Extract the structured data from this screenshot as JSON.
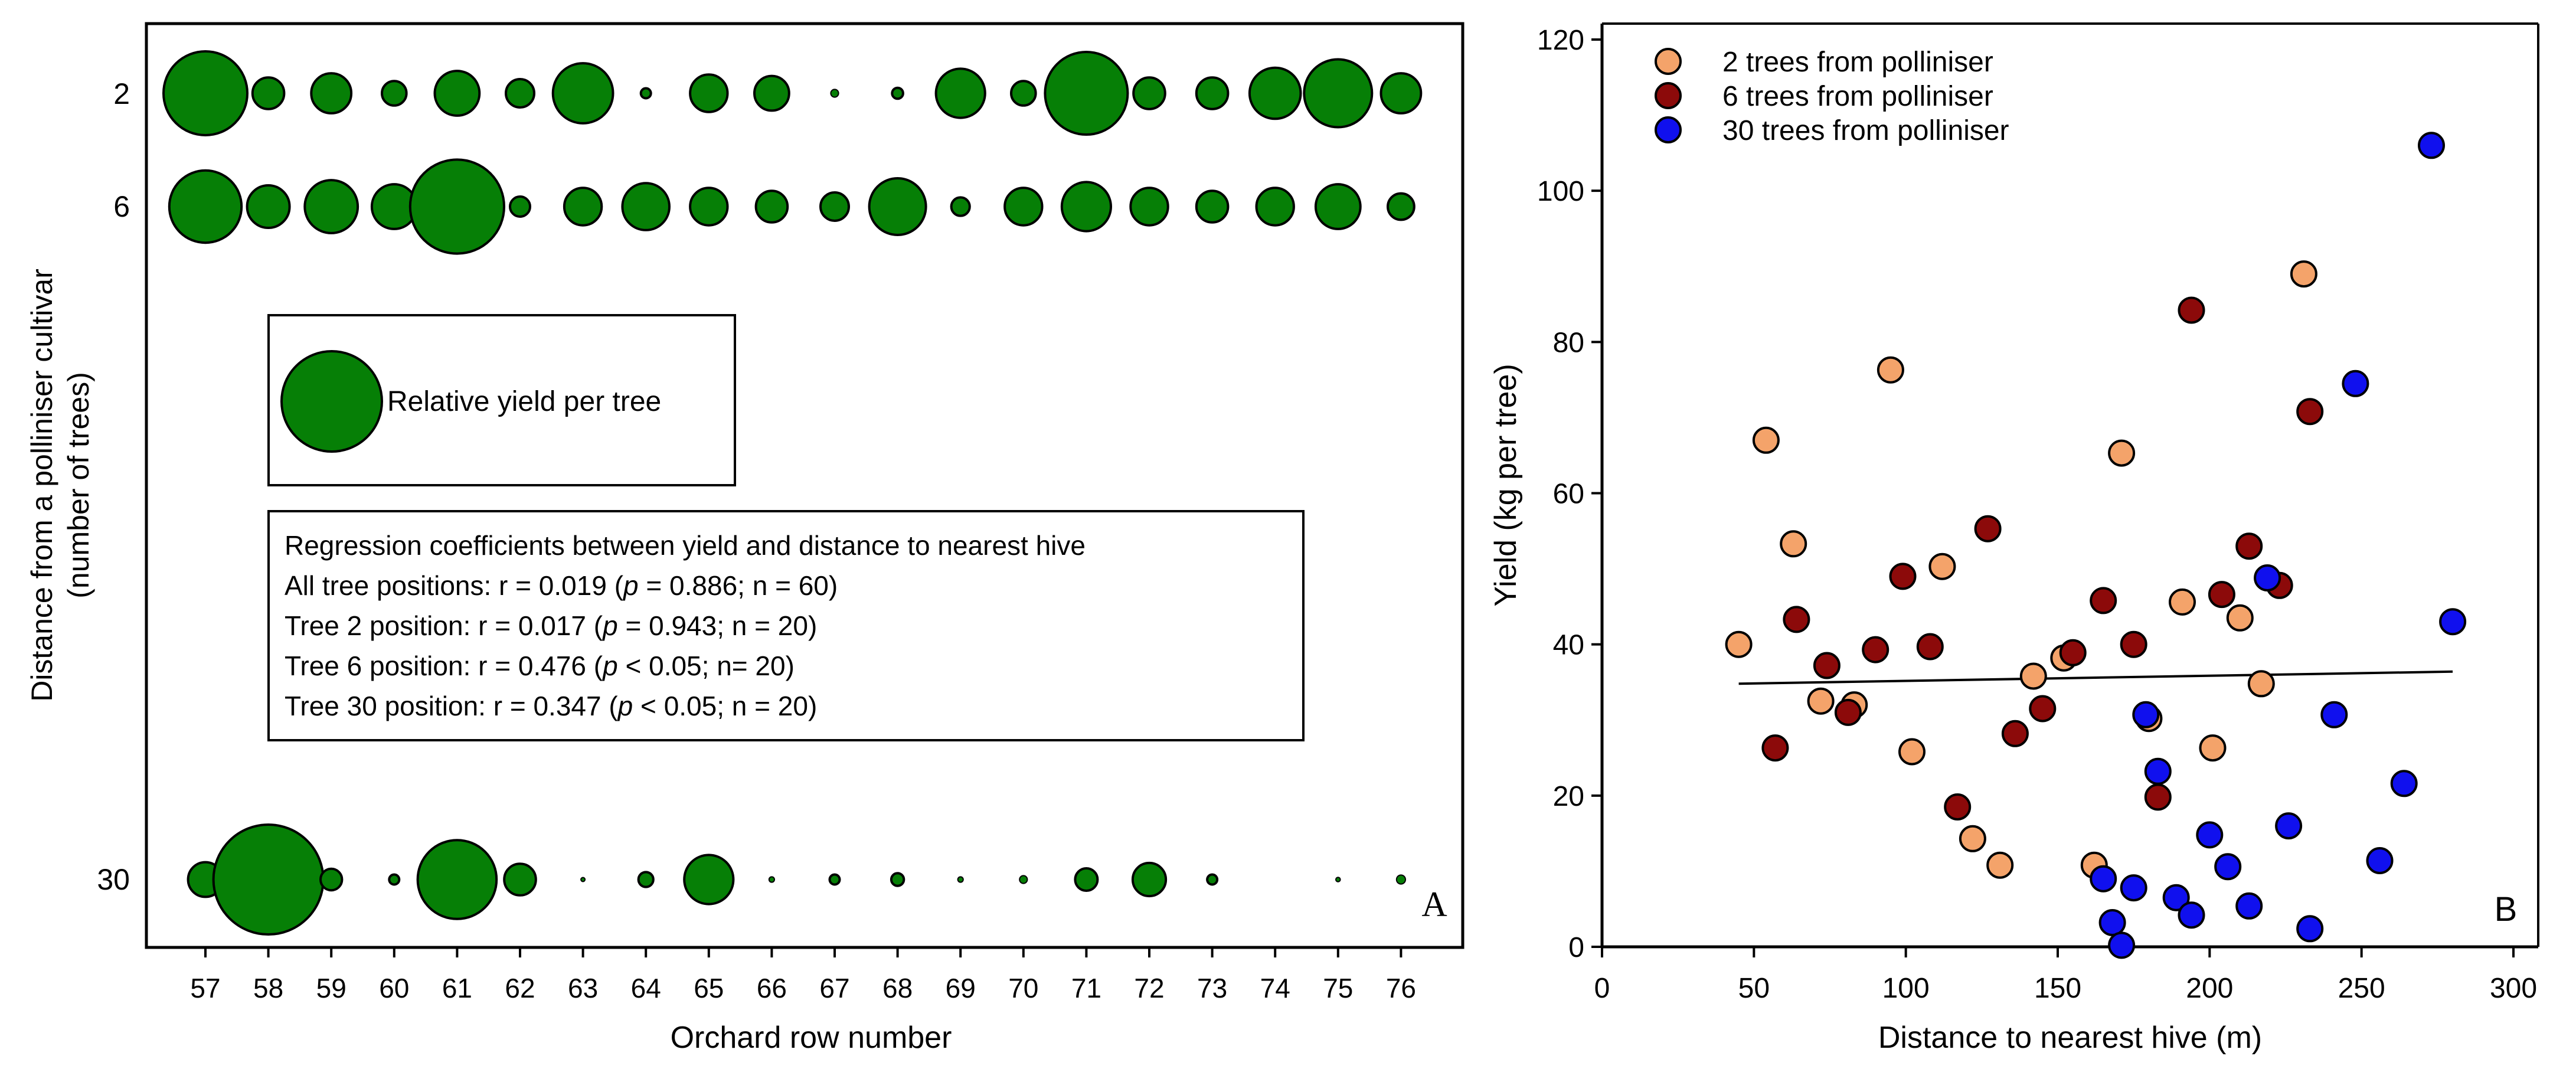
{
  "colors": {
    "bubble_fill": "#067f06",
    "series_orange": "#f4a36a",
    "series_darkred": "#8c0a0a",
    "series_blue": "#1010ee",
    "frame": "#000000"
  },
  "chart_data": [
    {
      "type": "bubble",
      "panel_letter": "A",
      "xlabel": "Orchard row number",
      "ylabel_line1": "Distance from a polliniser cultivar",
      "ylabel_line2": "(number of trees)",
      "categories": [
        "57",
        "58",
        "59",
        "60",
        "61",
        "62",
        "63",
        "64",
        "65",
        "66",
        "67",
        "68",
        "69",
        "70",
        "71",
        "72",
        "73",
        "74",
        "75",
        "76"
      ],
      "rows": [
        "2",
        "6",
        "30"
      ],
      "series": [
        {
          "name": "2",
          "values": [
            35,
            5,
            8,
            3,
            10,
            4,
            18,
            0.5,
            7,
            6,
            0.3,
            0.6,
            12,
            3,
            34,
            5,
            5,
            13,
            23,
            8
          ]
        },
        {
          "name": "6",
          "values": [
            26,
            9,
            14,
            10,
            44,
            2,
            7,
            11,
            7,
            5,
            4,
            16,
            1.7,
            7,
            12,
            7,
            5,
            7,
            10,
            3.5
          ]
        },
        {
          "name": "30",
          "values": [
            6,
            60,
            2.3,
            0.5,
            31,
            5,
            0.05,
            1.1,
            12,
            0.15,
            0.5,
            0.8,
            0.15,
            0.3,
            2.5,
            5.5,
            0.5,
            0,
            0.1,
            0.4
          ]
        }
      ],
      "legend_text": "Relative yield per tree",
      "regression_lines": [
        {
          "pre": "Regression coefficients between yield and distance to nearest hive",
          "p": "",
          "post": ""
        },
        {
          "pre": "All tree positions: r = 0.019 (",
          "p": "p",
          "post": " = 0.886; n = 60)"
        },
        {
          "pre": "Tree 2 position: r = 0.017 (",
          "p": "p",
          "post": " = 0.943; n = 20)"
        },
        {
          "pre": "Tree 6 position: r = 0.476 (",
          "p": "p",
          "post": " < 0.05; n= 20)"
        },
        {
          "pre": "Tree 30 position: r = 0.347 (",
          "p": "p",
          "post": " < 0.05; n = 20)"
        }
      ]
    },
    {
      "type": "scatter",
      "panel_letter": "B",
      "xlabel": "Distance to nearest hive (m)",
      "ylabel": "Yield (kg per tree)",
      "xlim": [
        0,
        300
      ],
      "ylim": [
        0,
        120
      ],
      "xticks": [
        0,
        50,
        100,
        150,
        200,
        250,
        300
      ],
      "yticks": [
        0,
        20,
        40,
        60,
        80,
        100,
        120
      ],
      "series": [
        {
          "name": "2 trees from polliniser",
          "color": "#f4a36a",
          "points": [
            [
              45,
              40
            ],
            [
              54,
              67
            ],
            [
              63,
              53.3
            ],
            [
              72,
              32.5
            ],
            [
              83,
              32
            ],
            [
              95,
              76.3
            ],
            [
              102,
              25.8
            ],
            [
              112,
              50.3
            ],
            [
              122,
              14.3
            ],
            [
              131,
              10.8
            ],
            [
              142,
              35.8
            ],
            [
              152,
              38.2
            ],
            [
              162,
              10.8
            ],
            [
              171,
              65.3
            ],
            [
              180,
              30.2
            ],
            [
              191,
              45.6
            ],
            [
              201,
              26.3
            ],
            [
              210,
              43.5
            ],
            [
              217,
              34.8
            ],
            [
              231,
              89
            ]
          ]
        },
        {
          "name": "6 trees from polliniser",
          "color": "#8c0a0a",
          "points": [
            [
              57,
              26.3
            ],
            [
              64,
              43.3
            ],
            [
              74,
              37.2
            ],
            [
              81,
              31
            ],
            [
              90,
              39.3
            ],
            [
              99,
              49
            ],
            [
              108,
              39.7
            ],
            [
              117,
              18.5
            ],
            [
              127,
              55.3
            ],
            [
              136,
              28.2
            ],
            [
              145,
              31.5
            ],
            [
              155,
              38.9
            ],
            [
              165,
              45.8
            ],
            [
              175,
              40
            ],
            [
              183,
              19.8
            ],
            [
              194,
              84.2
            ],
            [
              204,
              46.6
            ],
            [
              213,
              53
            ],
            [
              223,
              47.8
            ],
            [
              233,
              70.8
            ]
          ]
        },
        {
          "name": "30 trees from polliniser",
          "color": "#1010ee",
          "points": [
            [
              165,
              9
            ],
            [
              168,
              3.2
            ],
            [
              171,
              0.2
            ],
            [
              175,
              7.8
            ],
            [
              179,
              30.7
            ],
            [
              183,
              23.2
            ],
            [
              189,
              6.5
            ],
            [
              194,
              4.2
            ],
            [
              200,
              14.8
            ],
            [
              206,
              10.6
            ],
            [
              213,
              5.4
            ],
            [
              219,
              48.8
            ],
            [
              226,
              16
            ],
            [
              233,
              2.4
            ],
            [
              241,
              30.7
            ],
            [
              248,
              74.5
            ],
            [
              256,
              11.4
            ],
            [
              264,
              21.6
            ],
            [
              273,
              106
            ],
            [
              280,
              43
            ]
          ]
        }
      ],
      "trendline": {
        "x": [
          45,
          280
        ],
        "y": [
          34.8,
          36.4
        ]
      }
    }
  ]
}
